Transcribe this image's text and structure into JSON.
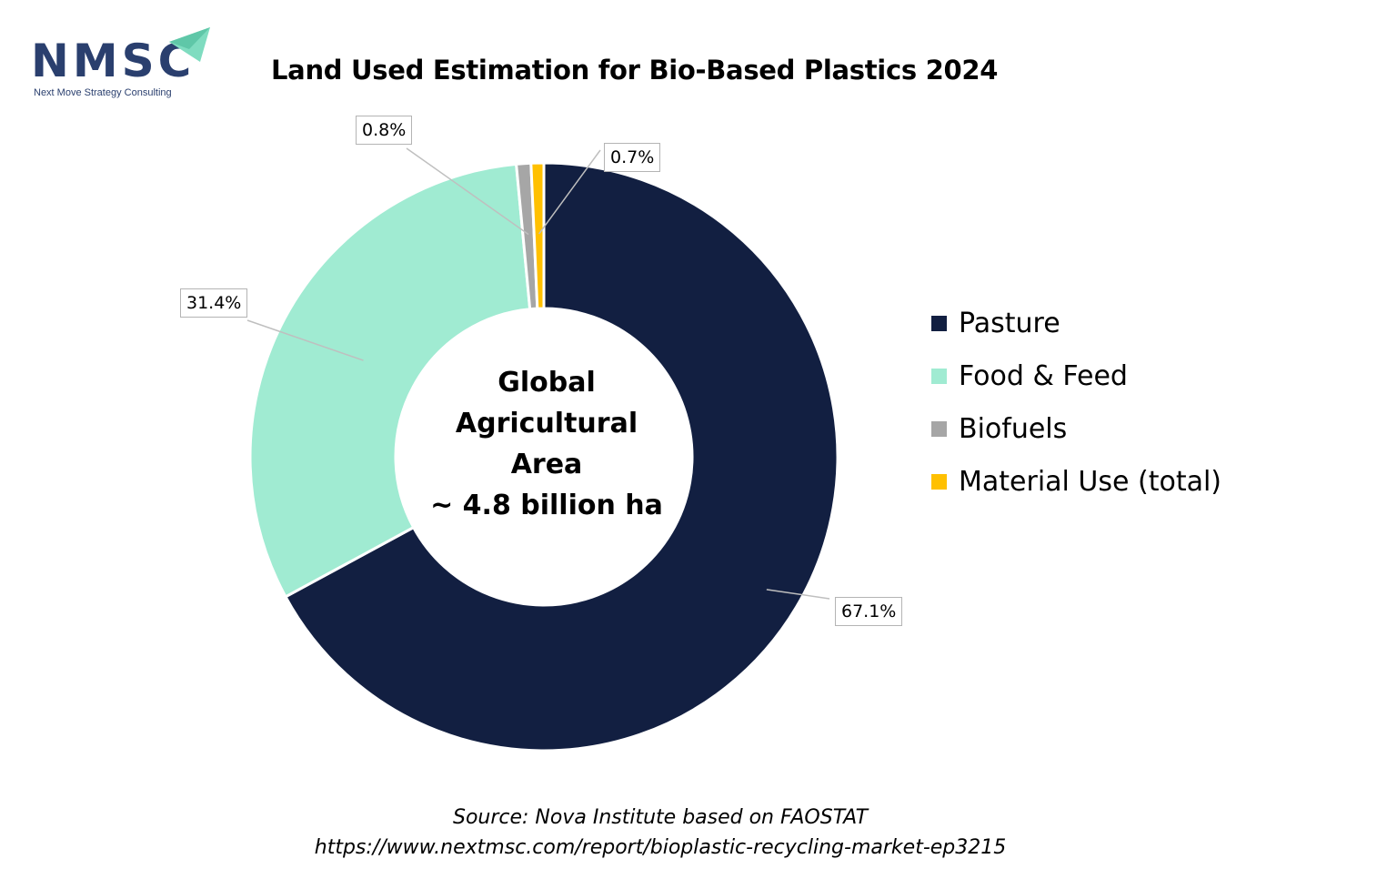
{
  "logo": {
    "wordmark": "NMSC",
    "tagline": "Next Move Strategy Consulting"
  },
  "chart_data": {
    "type": "pie",
    "title": "Land Used Estimation for Bio-Based Plastics 2024",
    "donut": true,
    "center_text": [
      "Global",
      "Agricultural",
      "Area",
      "~ 4.8 billion ha"
    ],
    "categories": [
      "Pasture",
      "Food & Feed",
      "Biofuels",
      "Material Use (total)"
    ],
    "values": [
      67.1,
      31.4,
      0.8,
      0.7
    ],
    "data_labels": [
      "67.1%",
      "31.4%",
      "0.8%",
      "0.7%"
    ],
    "colors": [
      "#121f41",
      "#a0ebd2",
      "#a6a6a6",
      "#ffc000"
    ],
    "legend_position": "right"
  },
  "source": {
    "line1": "Source: Nova Institute based on FAOSTAT",
    "line2": "https://www.nextmsc.com/report/bioplastic-recycling-market-ep3215"
  }
}
